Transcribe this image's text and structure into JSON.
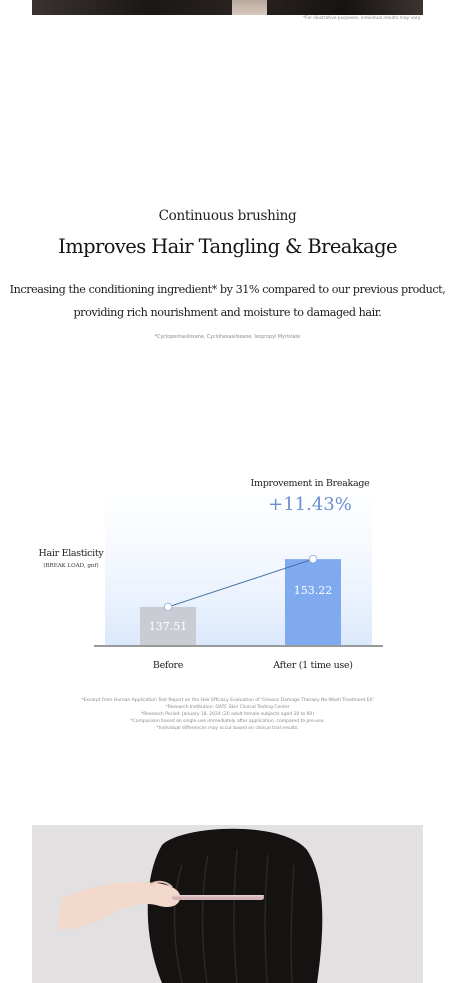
{
  "header": {
    "illustrative_note": "*For illustrative purposes, individual results may vary."
  },
  "intro": {
    "subtitle": "Continuous brushing",
    "title": "Improves Hair Tangling & Breakage",
    "body_line_1": "Increasing the conditioning ingredient* by 31% compared to our previous product,",
    "body_line_2": "providing rich nourishment and moisture to damaged hair.",
    "ingredient_note": "*Cyclopentasiloxane, Cyclohexasiloxane, Isopropyl Myristate"
  },
  "chart_data": {
    "type": "bar",
    "categories": [
      "Before",
      "After (1 time use)"
    ],
    "values": [
      137.51,
      153.22
    ],
    "ylabel": "Hair Elasticity",
    "ylabel_unit": "(BREAK LOAD, gnf)",
    "value_labels": [
      "137.51",
      "153.22"
    ],
    "improvement_label": "Improvement in Breakage",
    "improvement_value": "+11.43%",
    "colors": {
      "before_bar": "#c9ccd3",
      "after_bar": "#7faaf0",
      "highlight_start": "#f6f9ff",
      "highlight_end": "#dbe8fb",
      "line": "#3d6ca0",
      "improvement": "#6b8fd0"
    }
  },
  "footnotes": [
    "*Excerpt from Human Application Test Report on the Hair Efficacy Evaluation of 'Growus Damage Therapy No-Wash Treatment EX'",
    "*Research Institution: OATC Skin Clinical Testing Center",
    "*Research Period: January 18, 2024 (20 adult female subjects aged 20 to 60)",
    "*Comparison based on single-use immediately after application, compared to pre-use.",
    "*Individual differences may occur based on clinical trial results."
  ]
}
